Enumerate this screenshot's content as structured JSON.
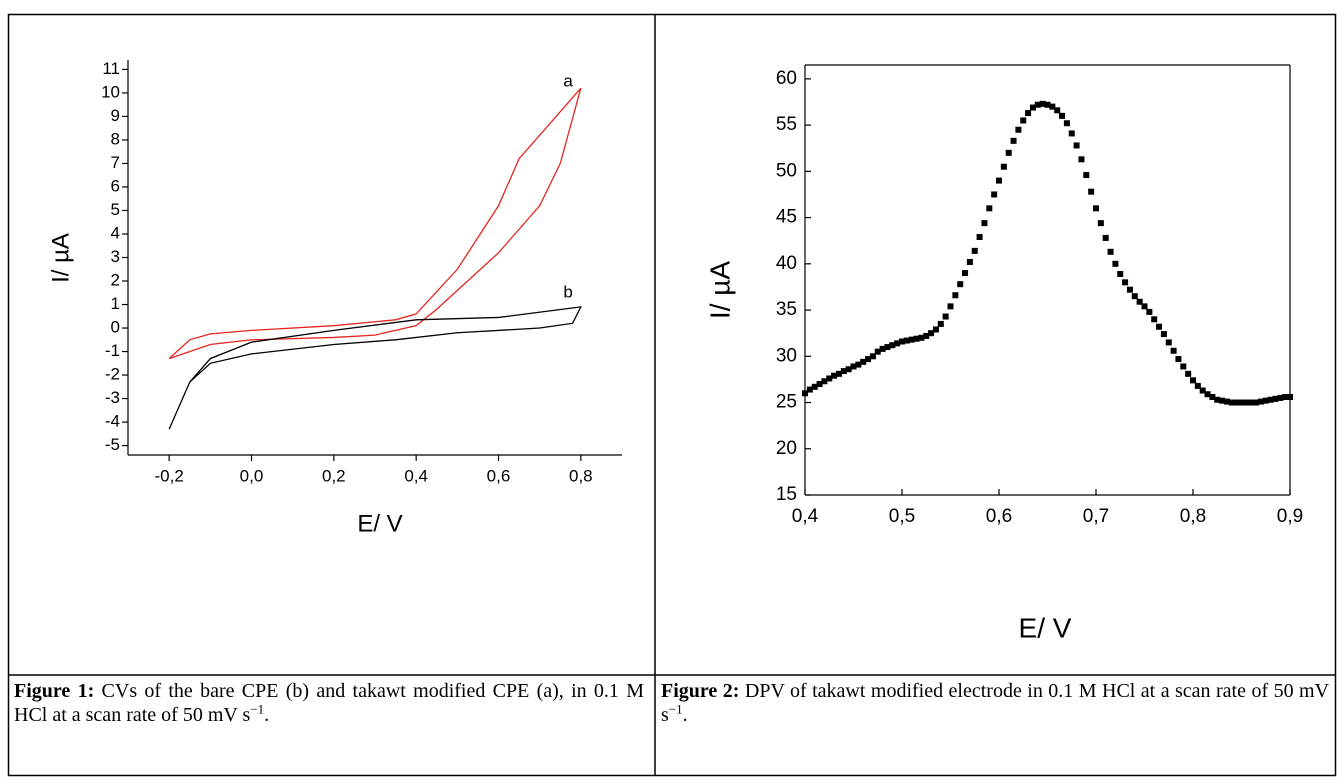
{
  "chart_data": [
    {
      "type": "line",
      "xlabel": "E/ V",
      "ylabel": "I/ µA",
      "xlim": [
        -0.3,
        0.9
      ],
      "ylim": [
        -5.4,
        11.4
      ],
      "xticks": [
        {
          "value": -0.2,
          "label": "-0,2"
        },
        {
          "value": 0,
          "label": "0,0"
        },
        {
          "value": 0.2,
          "label": "0,2"
        },
        {
          "value": 0.4,
          "label": "0,4"
        },
        {
          "value": 0.6,
          "label": "0,6"
        },
        {
          "value": 0.8,
          "label": "0,8"
        }
      ],
      "yticks": [
        -5,
        -4,
        -3,
        -2,
        -1,
        0,
        1,
        2,
        3,
        4,
        5,
        6,
        7,
        8,
        9,
        10,
        11
      ],
      "series": [
        {
          "label": "a",
          "color": "#e3261e",
          "x": [
            -0.2,
            -0.15,
            -0.1,
            0,
            0.2,
            0.35,
            0.4,
            0.5,
            0.6,
            0.65,
            0.7,
            0.8,
            0.75,
            0.7,
            0.6,
            0.5,
            0.45,
            0.4,
            0.3,
            0.2,
            0,
            -0.1,
            -0.2
          ],
          "values": [
            -1.3,
            -0.5,
            -0.25,
            -0.1,
            0.1,
            0.35,
            0.6,
            2.5,
            5.2,
            7.2,
            8.2,
            10.2,
            7,
            5.2,
            3.2,
            1.6,
            0.8,
            0.1,
            -0.3,
            -0.4,
            -0.5,
            -0.7,
            -1.3
          ]
        },
        {
          "label": "b",
          "color": "#000000",
          "x": [
            -0.2,
            -0.15,
            -0.1,
            0,
            0.2,
            0.4,
            0.6,
            0.8,
            0.78,
            0.7,
            0.5,
            0.35,
            0.2,
            0,
            -0.1,
            -0.15,
            -0.2
          ],
          "values": [
            -4.3,
            -2.3,
            -1.3,
            -0.6,
            -0.1,
            0.35,
            0.45,
            0.9,
            0.2,
            0,
            -0.2,
            -0.5,
            -0.7,
            -1.1,
            -1.5,
            -2.3,
            -4.3
          ]
        }
      ]
    },
    {
      "type": "scatter",
      "xlabel": "E/ V",
      "ylabel": "I/ µA",
      "color": "#000000",
      "xlim": [
        0.4,
        0.9
      ],
      "ylim": [
        15,
        61.5
      ],
      "xticks": [
        {
          "value": 0.4,
          "label": "0,4"
        },
        {
          "value": 0.5,
          "label": "0,5"
        },
        {
          "value": 0.6,
          "label": "0,6"
        },
        {
          "value": 0.7,
          "label": "0,7"
        },
        {
          "value": 0.8,
          "label": "0,8"
        },
        {
          "value": 0.9,
          "label": "0,9"
        }
      ],
      "yticks": [
        15,
        20,
        25,
        30,
        35,
        40,
        45,
        50,
        55,
        60
      ],
      "x": [
        0.4,
        0.405,
        0.41,
        0.415,
        0.42,
        0.425,
        0.43,
        0.435,
        0.44,
        0.445,
        0.45,
        0.455,
        0.46,
        0.465,
        0.47,
        0.475,
        0.48,
        0.485,
        0.49,
        0.495,
        0.5,
        0.505,
        0.51,
        0.515,
        0.52,
        0.525,
        0.53,
        0.535,
        0.54,
        0.545,
        0.55,
        0.555,
        0.56,
        0.565,
        0.57,
        0.575,
        0.58,
        0.585,
        0.59,
        0.595,
        0.6,
        0.605,
        0.61,
        0.615,
        0.62,
        0.625,
        0.63,
        0.635,
        0.64,
        0.645,
        0.65,
        0.655,
        0.66,
        0.665,
        0.67,
        0.675,
        0.68,
        0.685,
        0.69,
        0.695,
        0.7,
        0.705,
        0.71,
        0.715,
        0.72,
        0.725,
        0.73,
        0.735,
        0.74,
        0.745,
        0.75,
        0.755,
        0.76,
        0.765,
        0.77,
        0.775,
        0.78,
        0.785,
        0.79,
        0.795,
        0.8,
        0.805,
        0.81,
        0.815,
        0.82,
        0.825,
        0.83,
        0.835,
        0.84,
        0.845,
        0.85,
        0.855,
        0.86,
        0.865,
        0.87,
        0.875,
        0.88,
        0.885,
        0.89,
        0.895,
        0.9
      ],
      "values": [
        26.0,
        26.4,
        26.7,
        27.0,
        27.3,
        27.6,
        27.9,
        28.1,
        28.4,
        28.6,
        28.9,
        29.1,
        29.4,
        29.7,
        30.0,
        30.5,
        30.8,
        31.0,
        31.2,
        31.4,
        31.6,
        31.7,
        31.8,
        31.9,
        32.0,
        32.2,
        32.5,
        32.9,
        33.5,
        34.3,
        35.4,
        36.6,
        37.8,
        39.0,
        40.2,
        41.4,
        42.9,
        44.4,
        46.0,
        47.5,
        49.0,
        50.5,
        52.0,
        53.3,
        54.5,
        55.5,
        56.3,
        56.9,
        57.2,
        57.3,
        57.2,
        57.0,
        56.6,
        56.0,
        55.2,
        54.1,
        52.8,
        51.3,
        49.6,
        47.8,
        46.0,
        44.4,
        42.8,
        41.3,
        40.0,
        38.9,
        38.0,
        37.2,
        36.5,
        35.9,
        35.4,
        34.8,
        34.0,
        33.2,
        32.4,
        31.5,
        30.6,
        29.7,
        28.9,
        28.1,
        27.4,
        26.8,
        26.3,
        25.9,
        25.6,
        25.3,
        25.2,
        25.1,
        25.0,
        25.0,
        25.0,
        25.0,
        25.0,
        25.0,
        25.1,
        25.2,
        25.3,
        25.4,
        25.5,
        25.6,
        25.6
      ]
    }
  ],
  "captions": [
    {
      "label": "Figure 1:",
      "text": "CVs of the bare CPE (b) and takawt modified CPE (a), in 0.1 M HCl at a scan rate of 50 mV s",
      "superscript": "−1",
      "end": "."
    },
    {
      "label": "Figure 2:",
      "text": "DPV of takawt modified electrode in 0.1 M HCl at a scan rate of 50 mV s",
      "superscript": "−1",
      "end": "."
    }
  ]
}
